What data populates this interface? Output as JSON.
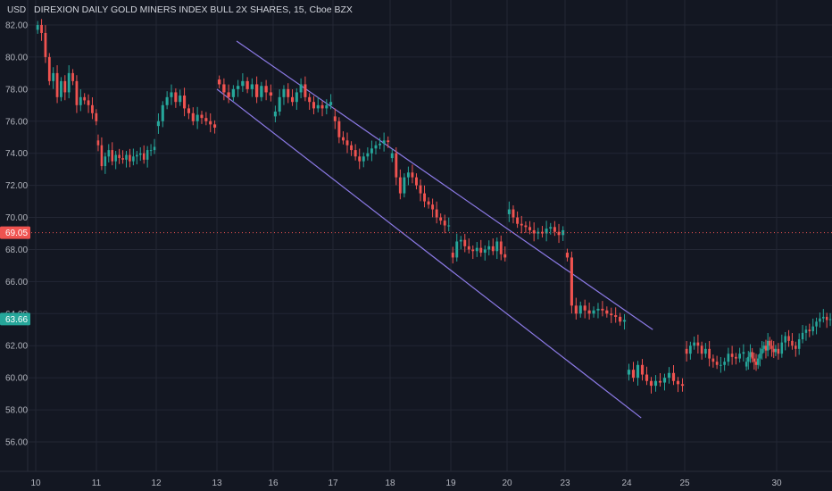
{
  "chart_data": {
    "type": "candlestick",
    "title": "DIREXION DAILY GOLD MINERS INDEX BULL 2X SHARES, 15, Cboe BZX",
    "y_unit": "USD",
    "ylim": [
      55.0,
      82.5
    ],
    "y_ticks": [
      "82.00",
      "80.00",
      "78.00",
      "76.00",
      "74.00",
      "72.00",
      "70.00",
      "68.00",
      "66.00",
      "64.00",
      "62.00",
      "60.00",
      "58.00",
      "56.00"
    ],
    "x_ticks": [
      "10",
      "11",
      "12",
      "13",
      "16",
      "17",
      "18",
      "19",
      "20",
      "23",
      "24",
      "25",
      "30"
    ],
    "grid": true,
    "badges": [
      {
        "label": "69.05",
        "value": 69.05,
        "color": "#ef5350",
        "dotted_line": true
      },
      {
        "label": "63.66",
        "value": 63.66,
        "color": "#26a69a",
        "dotted_line": false
      }
    ],
    "colors": {
      "up": "#26a69a",
      "down": "#ef5350",
      "channel": "#8c7ae6",
      "background": "#131722"
    },
    "channel_lines": [
      {
        "from": {
          "session": 3.35,
          "price": 81.0
        },
        "to": {
          "session": 10.45,
          "price": 63.0
        }
      },
      {
        "from": {
          "session": 3.0,
          "price": 78.0
        },
        "to": {
          "session": 10.25,
          "price": 57.5
        }
      }
    ],
    "sessions": [
      {
        "x": "10",
        "points": [
          82.0,
          81.5,
          80.0,
          78.5,
          79.0,
          77.5,
          78.5,
          77.8,
          79.0,
          78.5,
          77.0,
          77.5,
          77.3,
          77.0,
          76.5,
          76.0
        ]
      },
      {
        "x": "11",
        "points": [
          74.5,
          73.2,
          73.8,
          74.2,
          73.5,
          73.9,
          73.7,
          73.6,
          73.9,
          73.5,
          73.8,
          73.9,
          74.0,
          73.6,
          74.2,
          74.2,
          74.4
        ]
      },
      {
        "x": "12",
        "points": [
          76.0,
          77.0,
          77.5,
          77.8,
          77.2,
          77.6,
          76.8,
          76.5,
          76.0,
          76.4,
          76.2,
          76.0,
          75.8,
          75.6
        ]
      },
      {
        "x": "13",
        "points": [
          78.3,
          77.8,
          77.5,
          78.0,
          78.2,
          78.5,
          78.0,
          78.3,
          77.5,
          78.2,
          77.8,
          77.6
        ]
      },
      {
        "x": "16",
        "points": [
          76.6,
          77.5,
          78.0,
          77.5,
          77.2,
          77.8,
          78.3,
          77.5,
          77.2,
          76.8,
          77.0,
          76.8,
          77.0,
          77.2
        ]
      },
      {
        "x": "17",
        "points": [
          76.0,
          75.0,
          74.8,
          74.5,
          74.2,
          73.8,
          73.5,
          73.8,
          74.0,
          74.3,
          74.5,
          74.6,
          74.8,
          74.7
        ]
      },
      {
        "x": "18",
        "points": [
          74.0,
          72.5,
          71.5,
          72.5,
          72.8,
          72.5,
          72.0,
          71.5,
          71.0,
          70.8,
          70.5,
          70.0,
          69.8,
          69.5,
          69.5
        ]
      },
      {
        "x": "19",
        "points": [
          67.5,
          68.5,
          68.6,
          68.2,
          68.0,
          67.9,
          68.1,
          67.8,
          68.0,
          68.2,
          67.9,
          68.5,
          67.7,
          67.5
        ]
      },
      {
        "x": "20",
        "points": [
          70.5,
          70.0,
          69.6,
          69.5,
          69.4,
          69.2,
          69.0,
          69.1,
          69.0,
          69.3,
          69.4,
          69.1,
          68.9,
          69.2
        ]
      },
      {
        "x": "23",
        "points": [
          67.5,
          64.5,
          64.0,
          64.5,
          64.2,
          64.0,
          64.2,
          64.3,
          64.2,
          64.0,
          63.9,
          63.8,
          63.5,
          63.6
        ]
      },
      {
        "x": "24",
        "points": [
          60.5,
          60.0,
          60.8,
          60.2,
          59.8,
          59.5,
          59.8,
          59.7,
          60.0,
          60.3,
          59.8,
          59.6,
          59.5
        ]
      },
      {
        "x": "25",
        "points": [
          61.5,
          62.0,
          62.2,
          62.0,
          61.5,
          61.8,
          61.2,
          61.0,
          60.8,
          60.8,
          61.0,
          61.5,
          61.3,
          61.2,
          61.5,
          61.6
        ]
      },
      {
        "x": "29",
        "points": [
          61.0,
          61.3,
          61.6,
          61.2,
          61.0,
          60.8,
          61.2,
          61.5,
          61.8,
          62.0,
          61.7,
          62.3,
          62.0,
          61.8,
          61.6,
          61.8
        ]
      },
      {
        "x": "30",
        "points": [
          61.5,
          62.2,
          62.6,
          62.3,
          62.0,
          61.8,
          62.4,
          62.8,
          63.0,
          62.9,
          63.2,
          63.5,
          63.7,
          63.8,
          63.6,
          63.66
        ]
      }
    ]
  }
}
